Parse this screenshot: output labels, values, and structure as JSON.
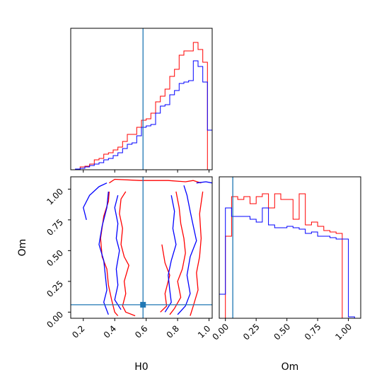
{
  "chart_data": [
    {
      "panel": "H0 marginal histogram",
      "type": "histogram",
      "xlim": [
        0.12,
        1.02
      ],
      "ylim": [
        0,
        1
      ],
      "truth_line": {
        "x": 0.58,
        "color": "#1f77b4"
      },
      "series": [
        {
          "color": "#ff0000",
          "bin_edges": [
            0.12,
            0.15,
            0.18,
            0.21,
            0.24,
            0.27,
            0.3,
            0.33,
            0.36,
            0.39,
            0.42,
            0.45,
            0.48,
            0.51,
            0.54,
            0.57,
            0.6,
            0.63,
            0.66,
            0.69,
            0.72,
            0.75,
            0.78,
            0.81,
            0.84,
            0.87,
            0.9,
            0.93,
            0.96,
            0.99,
            1.02
          ],
          "heights": [
            0.0,
            0.005,
            0.02,
            0.025,
            0.04,
            0.07,
            0.08,
            0.11,
            0.12,
            0.14,
            0.16,
            0.2,
            0.25,
            0.25,
            0.3,
            0.35,
            0.36,
            0.4,
            0.48,
            0.52,
            0.57,
            0.66,
            0.71,
            0.81,
            0.84,
            0.84,
            0.9,
            0.85,
            0.76,
            0.0
          ]
        },
        {
          "color": "#0000ff",
          "bin_edges": [
            0.12,
            0.15,
            0.18,
            0.21,
            0.24,
            0.27,
            0.3,
            0.33,
            0.36,
            0.39,
            0.42,
            0.45,
            0.48,
            0.51,
            0.54,
            0.57,
            0.6,
            0.63,
            0.66,
            0.69,
            0.72,
            0.75,
            0.78,
            0.81,
            0.84,
            0.87,
            0.9,
            0.93,
            0.96,
            0.99,
            1.02
          ],
          "heights": [
            0.0,
            0.005,
            0.01,
            0.02,
            0.03,
            0.04,
            0.05,
            0.07,
            0.08,
            0.1,
            0.12,
            0.15,
            0.18,
            0.19,
            0.24,
            0.3,
            0.31,
            0.32,
            0.4,
            0.45,
            0.46,
            0.53,
            0.56,
            0.61,
            0.62,
            0.63,
            0.77,
            0.73,
            0.62,
            0.28
          ]
        }
      ]
    },
    {
      "panel": "H0 vs Om 2D contours",
      "type": "contour",
      "xlabel": "H0",
      "ylabel": "Om",
      "xlim": [
        0.12,
        1.02
      ],
      "ylim": [
        -0.05,
        1.1
      ],
      "xticks": [
        "0.2",
        "0.4",
        "0.6",
        "0.8",
        "1.0"
      ],
      "yticks": [
        "0.00",
        "0.25",
        "0.50",
        "0.75",
        "1.00"
      ],
      "truth_point": {
        "x": 0.58,
        "y": 0.06,
        "color": "#1f77b4"
      },
      "contours": [
        {
          "color": "#ff0000",
          "points": [
            [
              0.365,
              1.05
            ],
            [
              0.4,
              1.08
            ],
            [
              0.56,
              1.07
            ],
            [
              0.74,
              1.07
            ],
            [
              0.85,
              1.06
            ],
            [
              0.9,
              1.07
            ],
            [
              0.95,
              1.05
            ]
          ]
        },
        {
          "color": "#ff0000",
          "points": [
            [
              0.365,
              0.98
            ],
            [
              0.36,
              0.9
            ],
            [
              0.33,
              0.78
            ],
            [
              0.31,
              0.6
            ],
            [
              0.32,
              0.45
            ],
            [
              0.35,
              0.35
            ],
            [
              0.36,
              0.22
            ],
            [
              0.38,
              0.1
            ],
            [
              0.4,
              0.0
            ],
            [
              0.42,
              -0.03
            ]
          ]
        },
        {
          "color": "#ff0000",
          "points": [
            [
              0.47,
              0.98
            ],
            [
              0.44,
              0.92
            ],
            [
              0.43,
              0.8
            ],
            [
              0.45,
              0.68
            ],
            [
              0.44,
              0.55
            ],
            [
              0.46,
              0.45
            ],
            [
              0.49,
              0.38
            ],
            [
              0.46,
              0.25
            ],
            [
              0.47,
              0.15
            ],
            [
              0.45,
              0.05
            ],
            [
              0.47,
              0.0
            ],
            [
              0.53,
              -0.03
            ]
          ]
        },
        {
          "color": "#ff0000",
          "points": [
            [
              0.79,
              0.98
            ],
            [
              0.81,
              0.85
            ],
            [
              0.82,
              0.72
            ],
            [
              0.84,
              0.6
            ],
            [
              0.85,
              0.48
            ],
            [
              0.83,
              0.35
            ],
            [
              0.8,
              0.25
            ],
            [
              0.82,
              0.12
            ],
            [
              0.78,
              0.03
            ],
            [
              0.75,
              -0.02
            ]
          ]
        },
        {
          "color": "#ff0000",
          "points": [
            [
              0.96,
              0.98
            ],
            [
              0.94,
              0.8
            ],
            [
              0.95,
              0.6
            ],
            [
              0.94,
              0.45
            ],
            [
              0.92,
              0.32
            ],
            [
              0.93,
              0.18
            ],
            [
              0.9,
              0.05
            ],
            [
              0.88,
              -0.03
            ]
          ]
        },
        {
          "color": "#ff0000",
          "points": [
            [
              0.7,
              0.55
            ],
            [
              0.72,
              0.4
            ],
            [
              0.75,
              0.3
            ],
            [
              0.72,
              0.15
            ],
            [
              0.73,
              0.05
            ],
            [
              0.69,
              0.0
            ]
          ]
        },
        {
          "color": "#0000ff",
          "points": [
            [
              0.35,
              1.05
            ],
            [
              0.3,
              1.02
            ],
            [
              0.24,
              0.95
            ],
            [
              0.2,
              0.85
            ],
            [
              0.22,
              0.75
            ]
          ]
        },
        {
          "color": "#0000ff",
          "points": [
            [
              0.36,
              0.98
            ],
            [
              0.35,
              0.85
            ],
            [
              0.32,
              0.7
            ],
            [
              0.3,
              0.55
            ],
            [
              0.33,
              0.42
            ],
            [
              0.34,
              0.3
            ],
            [
              0.35,
              0.18
            ],
            [
              0.33,
              0.08
            ],
            [
              0.36,
              -0.02
            ]
          ]
        },
        {
          "color": "#0000ff",
          "points": [
            [
              0.42,
              0.95
            ],
            [
              0.4,
              0.85
            ],
            [
              0.42,
              0.72
            ],
            [
              0.41,
              0.6
            ],
            [
              0.43,
              0.5
            ],
            [
              0.41,
              0.35
            ],
            [
              0.42,
              0.22
            ],
            [
              0.4,
              0.1
            ],
            [
              0.44,
              0.02
            ]
          ]
        },
        {
          "color": "#0000ff",
          "points": [
            [
              0.84,
              1.03
            ],
            [
              0.86,
              0.95
            ],
            [
              0.88,
              0.82
            ],
            [
              0.9,
              0.7
            ],
            [
              0.92,
              0.58
            ],
            [
              0.88,
              0.45
            ],
            [
              0.86,
              0.3
            ],
            [
              0.88,
              0.15
            ],
            [
              0.85,
              0.05
            ],
            [
              0.8,
              -0.02
            ]
          ]
        },
        {
          "color": "#0000ff",
          "points": [
            [
              0.76,
              0.95
            ],
            [
              0.78,
              0.82
            ],
            [
              0.77,
              0.68
            ],
            [
              0.79,
              0.55
            ],
            [
              0.76,
              0.42
            ],
            [
              0.74,
              0.3
            ],
            [
              0.75,
              0.18
            ],
            [
              0.76,
              0.08
            ],
            [
              0.72,
              0.0
            ]
          ]
        },
        {
          "color": "#0000ff",
          "points": [
            [
              0.92,
              1.05
            ],
            [
              0.98,
              1.06
            ],
            [
              1.02,
              1.05
            ]
          ]
        }
      ]
    },
    {
      "panel": "Om marginal histogram",
      "type": "histogram",
      "xlabel": "Om",
      "xlim": [
        -0.05,
        1.1
      ],
      "ylim": [
        0,
        1
      ],
      "xticks": [
        "0.00",
        "0.25",
        "0.50",
        "0.75",
        "1.00"
      ],
      "truth_line": {
        "x": 0.06,
        "color": "#1f77b4"
      },
      "series": [
        {
          "color": "#ff0000",
          "bin_edges": [
            -0.05,
            0.0,
            0.05,
            0.1,
            0.15,
            0.2,
            0.25,
            0.3,
            0.35,
            0.4,
            0.45,
            0.5,
            0.55,
            0.6,
            0.65,
            0.7,
            0.75,
            0.8,
            0.85,
            0.9,
            0.95,
            1.0,
            1.05
          ],
          "heights": [
            0.0,
            0.58,
            0.86,
            0.84,
            0.86,
            0.81,
            0.86,
            0.88,
            0.78,
            0.88,
            0.84,
            0.84,
            0.7,
            0.88,
            0.66,
            0.68,
            0.65,
            0.62,
            0.61,
            0.6,
            0.0,
            0.0
          ]
        },
        {
          "color": "#0000ff",
          "bin_edges": [
            -0.05,
            0.0,
            0.05,
            0.1,
            0.15,
            0.2,
            0.25,
            0.3,
            0.35,
            0.4,
            0.45,
            0.5,
            0.55,
            0.6,
            0.65,
            0.7,
            0.75,
            0.8,
            0.85,
            0.9,
            0.95,
            1.0,
            1.05
          ],
          "heights": [
            0.17,
            0.78,
            0.72,
            0.72,
            0.72,
            0.7,
            0.68,
            0.78,
            0.66,
            0.64,
            0.64,
            0.65,
            0.64,
            0.63,
            0.6,
            0.61,
            0.58,
            0.58,
            0.57,
            0.56,
            0.56,
            0.01
          ]
        }
      ]
    }
  ]
}
